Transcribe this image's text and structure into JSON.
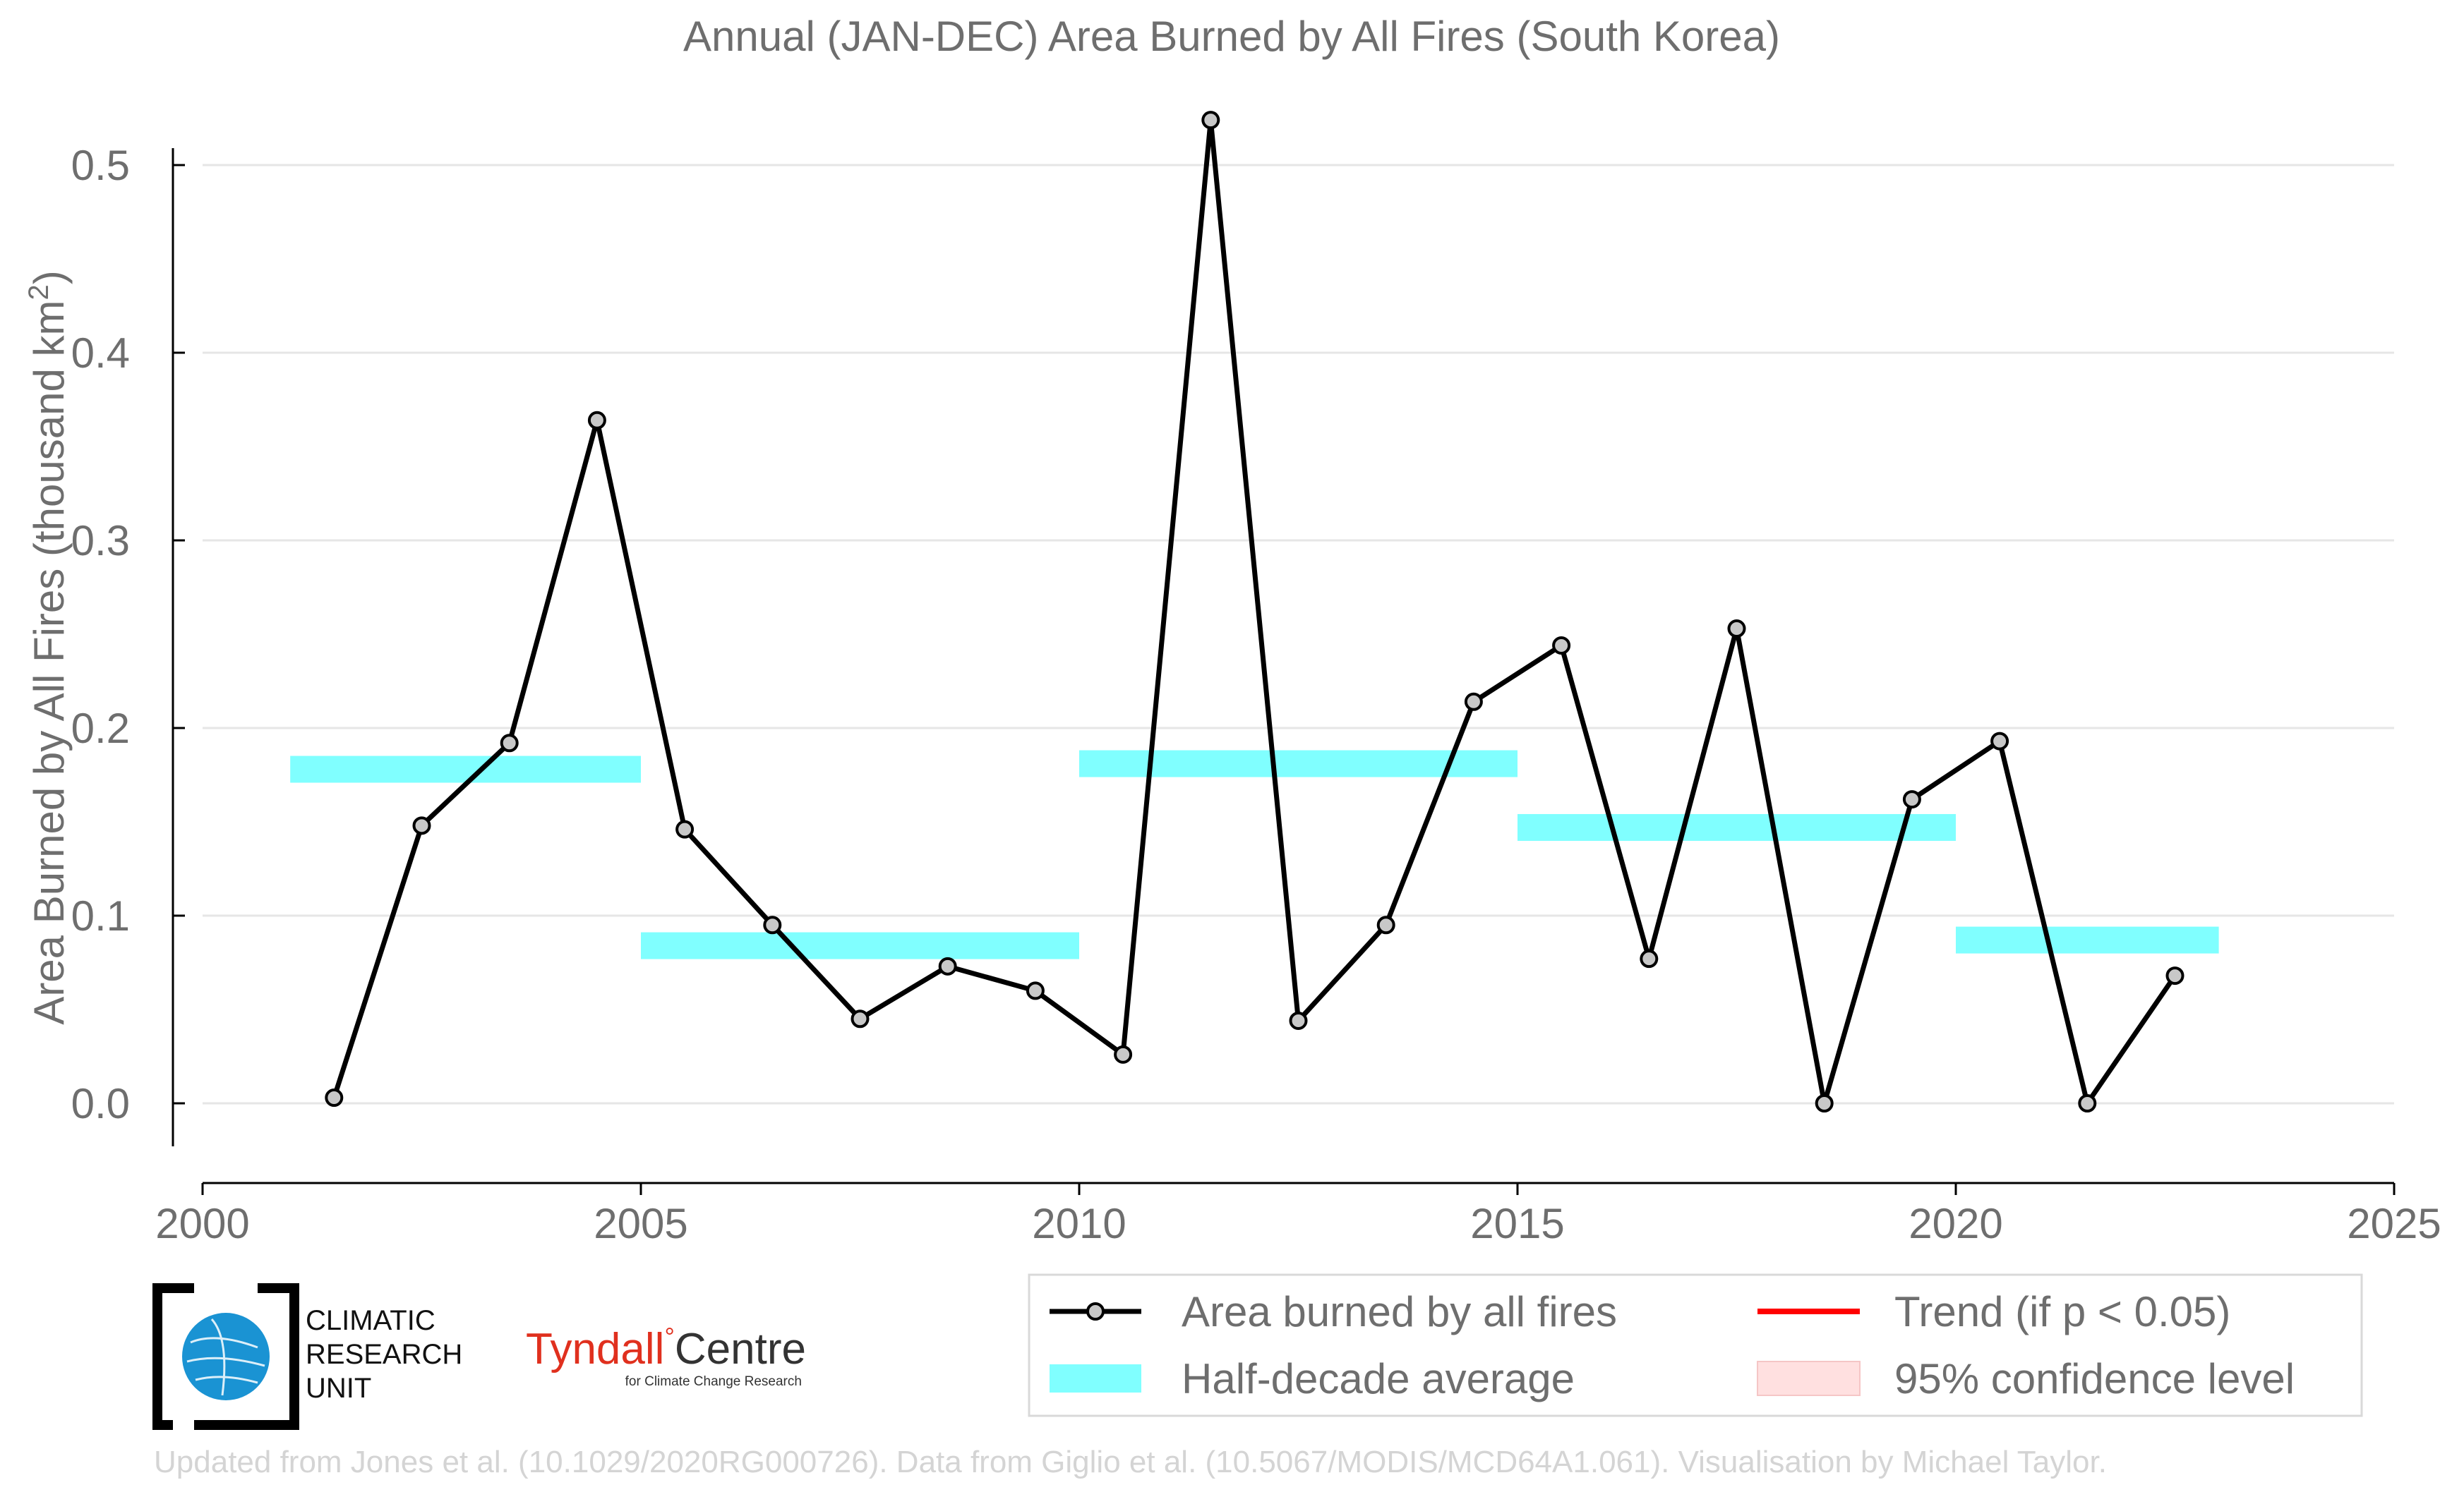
{
  "chart_data": {
    "type": "line",
    "title": "Annual (JAN-DEC) Area Burned by All Fires (South Korea)",
    "ylabel_main": "Area Burned by All Fires (thousand km",
    "ylabel_sup": "2",
    "ylabel_end": ")",
    "xlim": [
      2000,
      2025
    ],
    "ylim": [
      -0.04,
      0.53
    ],
    "x_ticks": [
      2000,
      2005,
      2010,
      2015,
      2020,
      2025
    ],
    "y_ticks": [
      0.0,
      0.1,
      0.2,
      0.3,
      0.4,
      0.5
    ],
    "y_tick_labels": [
      "0.0",
      "0.1",
      "0.2",
      "0.3",
      "0.4",
      "0.5"
    ],
    "grid": "horizontal",
    "series": [
      {
        "name": "Area burned by all fires",
        "color": "#000000",
        "marker_fill": "#c8c8c8",
        "x": [
          2001.5,
          2002.5,
          2003.5,
          2004.5,
          2005.5,
          2006.5,
          2007.5,
          2008.5,
          2009.5,
          2010.5,
          2011.5,
          2012.5,
          2013.5,
          2014.5,
          2015.5,
          2016.5,
          2017.5,
          2018.5,
          2019.5,
          2020.5,
          2021.5,
          2022.5
        ],
        "y": [
          0.003,
          0.148,
          0.192,
          0.364,
          0.146,
          0.095,
          0.045,
          0.073,
          0.06,
          0.026,
          0.524,
          0.044,
          0.095,
          0.214,
          0.244,
          0.077,
          0.253,
          0.0,
          0.162,
          0.193,
          0.0,
          0.068
        ]
      }
    ],
    "half_decade_average": {
      "name": "Half-decade average",
      "color": "#80ffff",
      "segments": [
        {
          "x0": 2001,
          "x1": 2005,
          "y": 0.178
        },
        {
          "x0": 2005,
          "x1": 2010,
          "y": 0.084
        },
        {
          "x0": 2010,
          "x1": 2015,
          "y": 0.181
        },
        {
          "x0": 2015,
          "x1": 2020,
          "y": 0.147
        },
        {
          "x0": 2020,
          "x1": 2023,
          "y": 0.087
        }
      ]
    },
    "legend": {
      "placement": "bottom-right",
      "items": [
        {
          "key": "line",
          "label": "Area burned by all fires",
          "color": "#000000"
        },
        {
          "key": "trend",
          "label": "Trend (if p < 0.05)",
          "color": "#ff0000"
        },
        {
          "key": "band",
          "label": "Half-decade average",
          "color": "#80ffff"
        },
        {
          "key": "ci",
          "label": "95% confidence level",
          "color": "#ffe0e0"
        }
      ]
    }
  },
  "logos": {
    "cru_line1": "CLIMATIC",
    "cru_line2": "RESEARCH",
    "cru_line3": "UNIT",
    "tyndall_part1": "Tyndall",
    "tyndall_degree": "°",
    "tyndall_part2": "Centre",
    "tyndall_sub": "for Climate Change Research"
  },
  "footer": "Updated from Jones et al. (10.1029/2020RG000726). Data from Giglio et al. (10.5067/MODIS/MCD64A1.061). Visualisation by Michael Taylor."
}
